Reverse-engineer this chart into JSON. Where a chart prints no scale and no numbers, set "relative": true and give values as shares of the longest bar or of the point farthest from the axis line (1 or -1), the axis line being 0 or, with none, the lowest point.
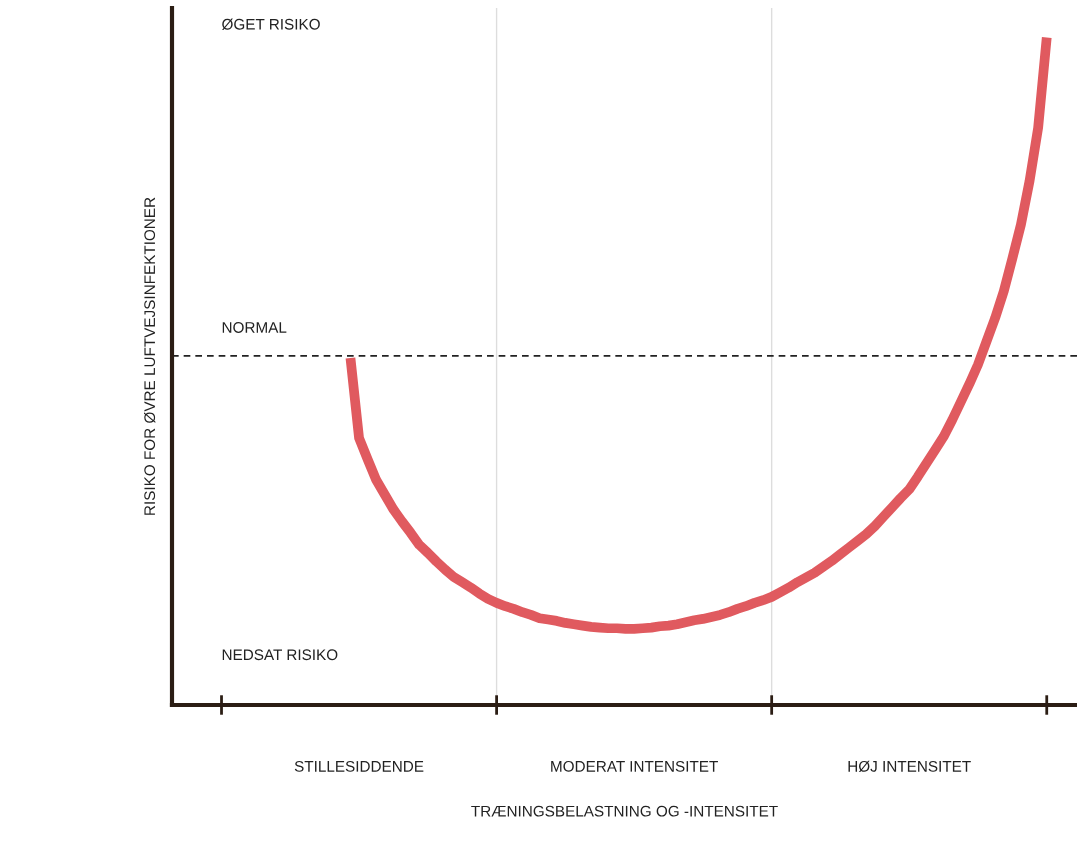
{
  "chart_data": {
    "type": "line",
    "relative": true,
    "xlabel": "TRÆNINGSBELASTNING OG -INTENSITET",
    "ylabel": "RISIKO FOR ØVRE LUFTVEJSINFEKTIONER",
    "categories": [
      null,
      null,
      null,
      null,
      null,
      null,
      null,
      null,
      null,
      null,
      null,
      null,
      null,
      null,
      null,
      null,
      "STILLESIDDENDE",
      null,
      null,
      null,
      null,
      null,
      null,
      null,
      null,
      null,
      null,
      null,
      null,
      null,
      null,
      null,
      null,
      null,
      null,
      null,
      null,
      null,
      null,
      null,
      null,
      null,
      null,
      null,
      null,
      null,
      null,
      null,
      "MODERAT INTENSITET",
      null,
      null,
      null,
      null,
      null,
      null,
      null,
      null,
      null,
      null,
      null,
      null,
      null,
      null,
      null,
      null,
      null,
      null,
      null,
      null,
      null,
      null,
      null,
      null,
      null,
      null,
      null,
      null,
      null,
      null,
      null,
      "HØJ INTENSITET",
      null,
      null,
      null,
      null,
      null,
      null,
      null,
      null,
      null,
      null,
      null,
      null,
      null,
      null,
      null,
      null
    ],
    "series": [
      {
        "color": "#e05a5f",
        "values": [
          null,
          null,
          null,
          null,
          null,
          null,
          null,
          null,
          null,
          null,
          null,
          null,
          null,
          null,
          null,
          0.52,
          0.4,
          0.368,
          0.337,
          0.315,
          0.293,
          0.275,
          0.258,
          0.24,
          0.228,
          0.215,
          0.203,
          0.192,
          0.184,
          0.176,
          0.167,
          0.159,
          0.153,
          0.148,
          0.144,
          0.139,
          0.135,
          0.13,
          0.128,
          0.126,
          0.123,
          0.121,
          0.119,
          0.117,
          0.116,
          0.115,
          0.115,
          0.114,
          0.114,
          0.115,
          0.116,
          0.118,
          0.119,
          0.121,
          0.124,
          0.127,
          0.129,
          0.132,
          0.135,
          0.139,
          0.144,
          0.148,
          0.153,
          0.157,
          0.162,
          0.169,
          0.176,
          0.184,
          0.191,
          0.198,
          0.207,
          0.216,
          0.226,
          0.236,
          0.246,
          0.256,
          0.268,
          0.282,
          0.296,
          0.31,
          0.323,
          0.342,
          0.362,
          0.382,
          0.402,
          0.427,
          0.454,
          0.481,
          0.51,
          0.545,
          0.58,
          0.62,
          0.669,
          0.72,
          0.785,
          0.865,
          1.0
        ]
      }
    ],
    "ref_lines": [
      {
        "axis": "y",
        "value": 0.523,
        "label": "NORMAL",
        "color": "#222222",
        "line_style": "dashed"
      }
    ],
    "annotations": [
      "ØGET RISIKO",
      "NEDSAT RISIKO"
    ],
    "grid": "x",
    "marker": "none",
    "line_style": "solid",
    "legend": false
  }
}
